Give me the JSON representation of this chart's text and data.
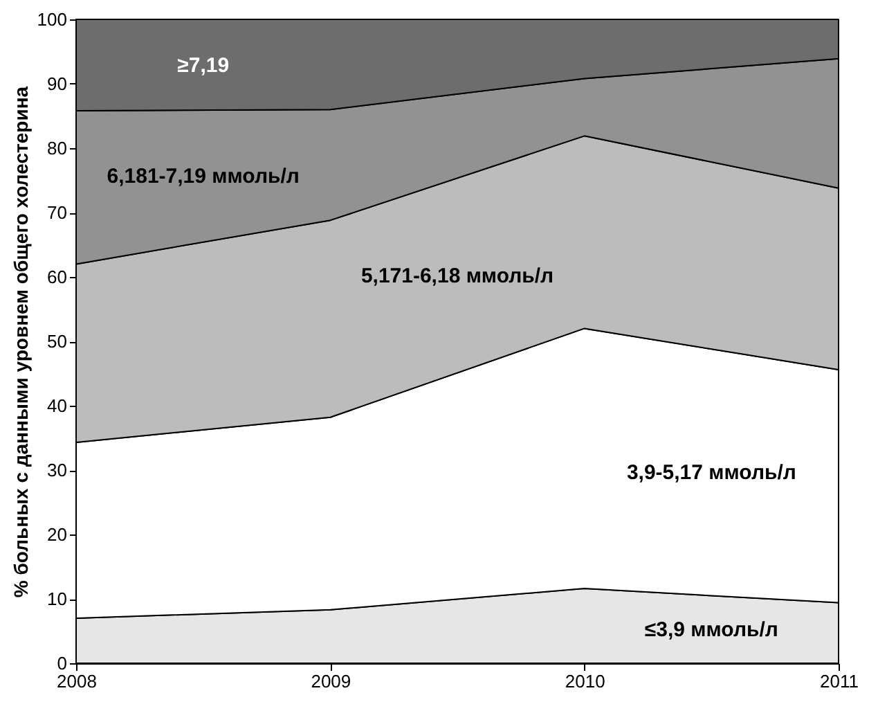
{
  "chart_data": {
    "type": "area",
    "stacked": true,
    "ylabel": "% больных с данными уровнем общего холестерина",
    "x": [
      2008,
      2009,
      2010,
      2011
    ],
    "xlim": [
      2008,
      2011
    ],
    "xticks": [
      2008,
      2009,
      2010,
      2011
    ],
    "ylim": [
      0,
      100
    ],
    "yticks": [
      0,
      10,
      20,
      30,
      40,
      50,
      60,
      70,
      80,
      90,
      100
    ],
    "grid": false,
    "series": [
      {
        "name": "≤3,9 ммоль/л",
        "color": "#e6e6e6",
        "values": [
          7.0,
          8.3,
          11.6,
          9.4
        ]
      },
      {
        "name": "3,9-5,17 ммоль/л",
        "color": "#ffffff",
        "values": [
          27.3,
          29.9,
          40.4,
          36.2
        ]
      },
      {
        "name": "5,171-6,18 ммоль/л",
        "color": "#bcbcbd",
        "values": [
          27.7,
          30.6,
          29.9,
          28.2
        ]
      },
      {
        "name": "6,181-7,19 ммоль/л",
        "color": "#929292",
        "values": [
          23.8,
          17.2,
          8.9,
          20.1
        ]
      },
      {
        "name": "≥7,19",
        "color": "#6d6d6e",
        "values": [
          14.2,
          14.0,
          9.2,
          6.1
        ]
      }
    ]
  }
}
